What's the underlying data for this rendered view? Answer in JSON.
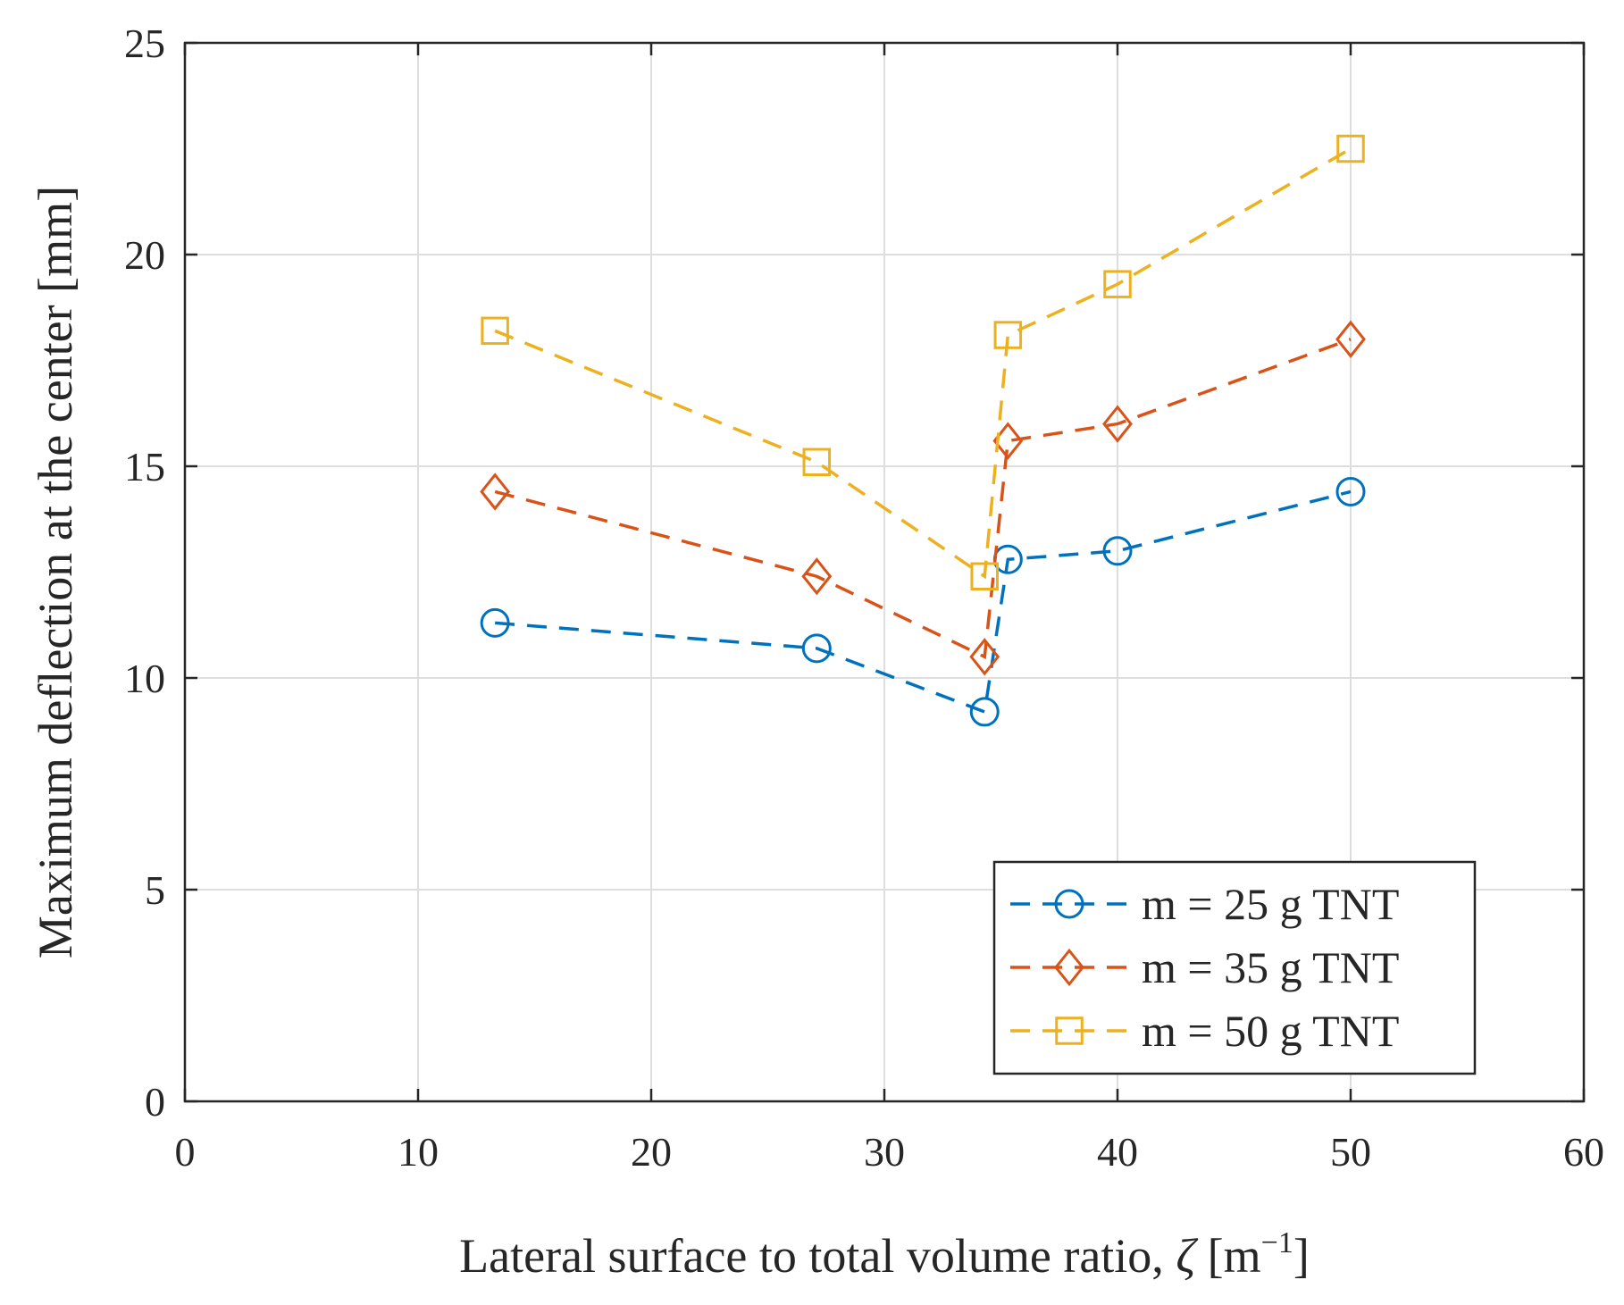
{
  "chart_data": {
    "type": "line",
    "title": "",
    "xlabel": "Lateral surface to total volume ratio, ",
    "xlabel_symbol": "ζ",
    "xlabel_unit_open": " [m",
    "xlabel_unit_exp": "−1",
    "xlabel_unit_close": "]",
    "ylabel": "Maximum deflection at the center [mm]",
    "xlim": [
      0,
      60
    ],
    "ylim": [
      0,
      25
    ],
    "xticks": [
      "0",
      "10",
      "20",
      "30",
      "40",
      "50",
      "60"
    ],
    "yticks": [
      "0",
      "5",
      "10",
      "15",
      "20",
      "25"
    ],
    "grid": true,
    "legend_position": "bottom-right",
    "series": [
      {
        "name": "m = 25 g TNT",
        "color": "#0072BD",
        "marker": "circle",
        "x": [
          13.3,
          27.1,
          34.3,
          35.3,
          40.0,
          50.0
        ],
        "y": [
          11.3,
          10.7,
          9.2,
          12.8,
          13.0,
          14.4
        ]
      },
      {
        "name": "m = 35 g TNT",
        "color": "#D95319",
        "marker": "diamond",
        "x": [
          13.3,
          27.1,
          34.3,
          35.3,
          40.0,
          50.0
        ],
        "y": [
          14.4,
          12.4,
          10.5,
          15.6,
          16.0,
          18.0
        ]
      },
      {
        "name": "m = 50 g TNT",
        "color": "#EDB120",
        "marker": "square",
        "x": [
          13.3,
          27.1,
          34.3,
          35.3,
          40.0,
          50.0
        ],
        "y": [
          18.2,
          15.1,
          12.4,
          18.1,
          19.3,
          22.5
        ]
      }
    ]
  }
}
